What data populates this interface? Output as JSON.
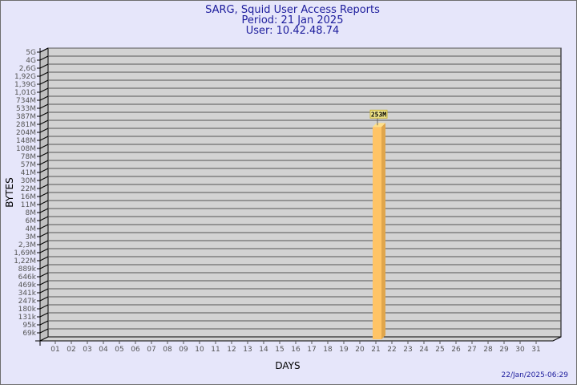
{
  "chart_data": {
    "type": "bar",
    "title": "SARG, Squid User Access Reports",
    "subtitle": [
      "Period: 21 Jan 2025",
      "User: 10.42.48.74"
    ],
    "xlabel": "DAYS",
    "ylabel": "BYTES",
    "y_scale": "log-like (uneven steps)",
    "y_ticks": [
      "5G",
      "4G",
      "2,6G",
      "1,92G",
      "1,39G",
      "1,01G",
      "734M",
      "533M",
      "387M",
      "281M",
      "204M",
      "148M",
      "108M",
      "78M",
      "57M",
      "41M",
      "30M",
      "22M",
      "16M",
      "11M",
      "8M",
      "6M",
      "4M",
      "3M",
      "2,3M",
      "1,69M",
      "1,22M",
      "889k",
      "646k",
      "469k",
      "341k",
      "247k",
      "180k",
      "131k",
      "95k",
      "69k"
    ],
    "categories": [
      "01",
      "02",
      "03",
      "04",
      "05",
      "06",
      "07",
      "08",
      "09",
      "10",
      "11",
      "12",
      "13",
      "14",
      "15",
      "16",
      "17",
      "18",
      "19",
      "20",
      "21",
      "22",
      "23",
      "24",
      "25",
      "26",
      "27",
      "28",
      "29",
      "30",
      "31"
    ],
    "bars": [
      {
        "category": "21",
        "value": "253M",
        "label": "253M"
      }
    ],
    "grid": true,
    "colors": {
      "bar_front": "#ffc466",
      "bar_side": "#e0a64c",
      "bar_top": "#ffe08a",
      "wall": "#d3d3d3",
      "side_wall": "#c0c0c0",
      "label_bg": "#f0e68c",
      "title": "#1c1c9c"
    }
  },
  "footer": {
    "timestamp": "22/Jan/2025-06:29"
  }
}
